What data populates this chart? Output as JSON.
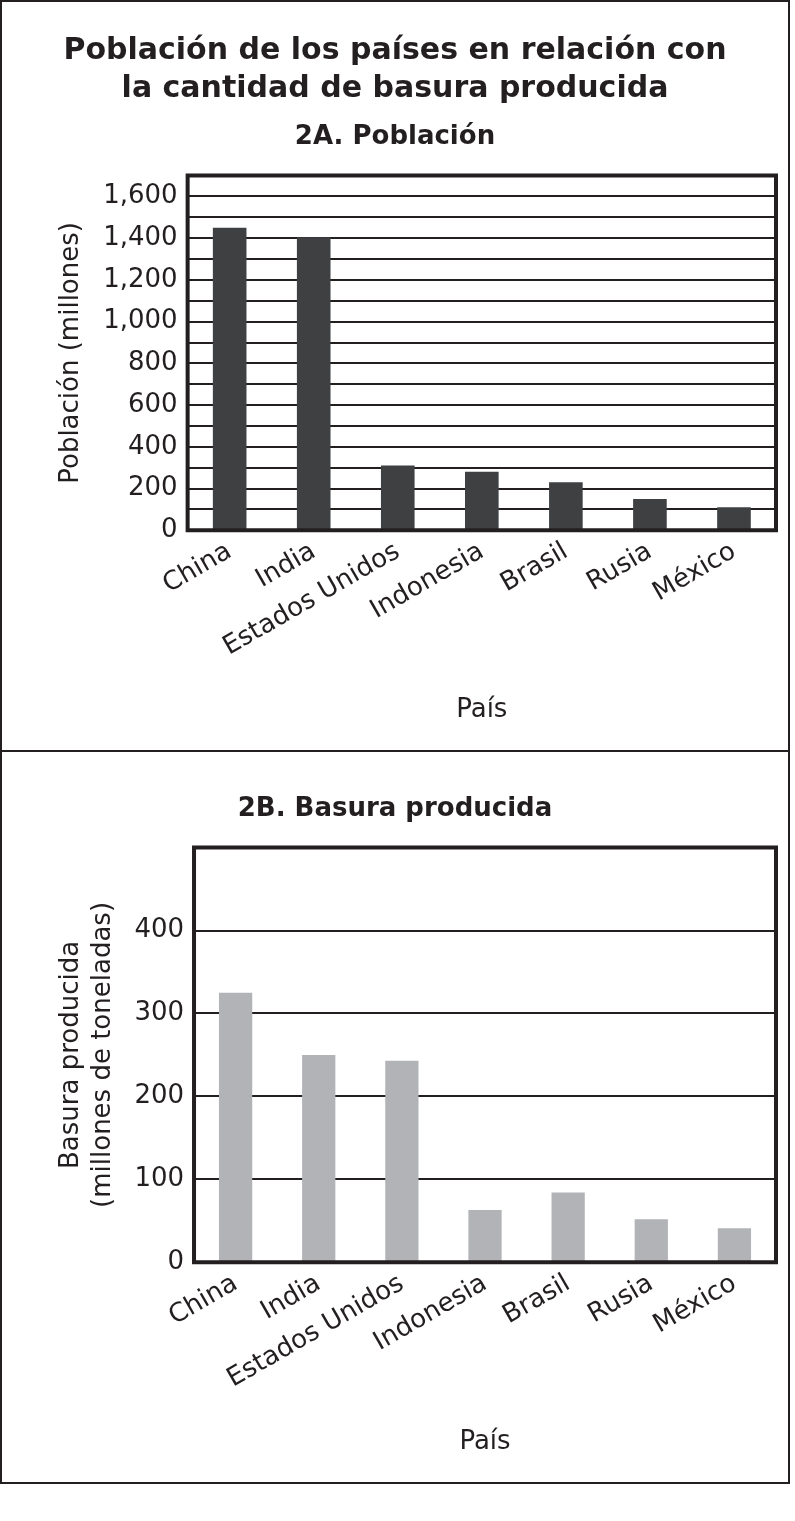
{
  "chart_data": [
    {
      "type": "bar",
      "title": "Población de los países en relación con la cantidad de basura producida",
      "subtitle": "2A. Población",
      "xlabel": "País",
      "ylabel": "Población (millones)",
      "categories": [
        "China",
        "India",
        "Estados Unidos",
        "Indonesia",
        "Brasil",
        "Rusia",
        "México"
      ],
      "values": [
        1450,
        1405,
        310,
        280,
        230,
        150,
        110
      ],
      "color": "#3f4042",
      "ylim": [
        0,
        1700
      ],
      "yticks": [
        0,
        {
          "value": 100,
          "label": null
        },
        200,
        {
          "value": 300,
          "label": null
        },
        400,
        {
          "value": 500,
          "label": null
        },
        600,
        {
          "value": 700,
          "label": null
        },
        800,
        {
          "value": 900,
          "label": null
        },
        {
          "value": 1000,
          "label": "1,000"
        },
        {
          "value": 1100,
          "label": null
        },
        {
          "value": 1200,
          "label": "1,200"
        },
        {
          "value": 1300,
          "label": null
        },
        {
          "value": 1400,
          "label": "1,400"
        },
        {
          "value": 1500,
          "label": null
        },
        {
          "value": 1600,
          "label": "1,600"
        }
      ],
      "grid": "y",
      "legend": false
    },
    {
      "type": "bar",
      "title": "2B. Basura producida",
      "xlabel": "País",
      "ylabel": "Basura producida\n(millones de toneladas)",
      "categories": [
        "China",
        "India",
        "Estados Unidos",
        "Indonesia",
        "Brasil",
        "Rusia",
        "México"
      ],
      "values": [
        325,
        250,
        243,
        63,
        84,
        52,
        41
      ],
      "color": "#b2b3b6",
      "ylim": [
        0,
        500
      ],
      "yticks": [
        0,
        100,
        200,
        300,
        400
      ],
      "grid": "y",
      "legend": false
    }
  ]
}
